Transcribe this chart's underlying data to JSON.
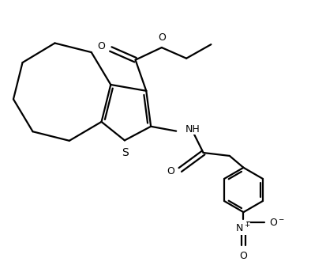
{
  "bg_color": "#ffffff",
  "line_color": "#000000",
  "line_width": 1.6,
  "figsize": [
    3.94,
    3.45
  ],
  "dpi": 100,
  "xlim": [
    0,
    10
  ],
  "ylim": [
    0,
    8.75
  ],
  "font_size": 9
}
